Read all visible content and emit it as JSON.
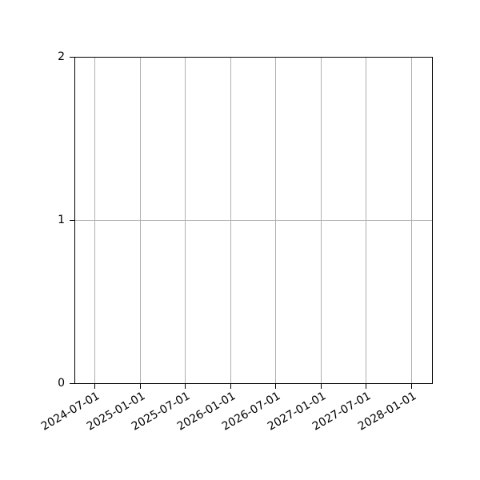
{
  "chart_data": {
    "type": "line",
    "title": "",
    "xlabel": "",
    "ylabel": "",
    "series": [],
    "note": "empty axes, no data plotted",
    "x_tick_labels": [
      "2024-07-01",
      "2025-01-01",
      "2025-07-01",
      "2026-01-01",
      "2026-07-01",
      "2027-01-01",
      "2027-07-01",
      "2028-01-01"
    ],
    "y_tick_labels": [
      "0",
      "1",
      "2"
    ],
    "y_tick_values": [
      0,
      1,
      2
    ],
    "ylim": [
      0,
      2
    ],
    "grid": true,
    "legend": false,
    "x_tick_rotation_deg": 30,
    "colors": {
      "background": "#ffffff",
      "spine": "#000000",
      "grid": "#b0b0b0",
      "text": "#000000"
    }
  }
}
